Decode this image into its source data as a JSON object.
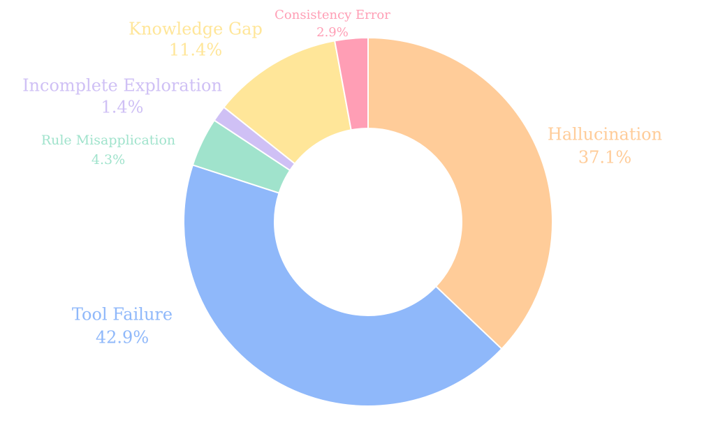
{
  "chart_data": {
    "type": "donut",
    "categories": [
      "Hallucination",
      "Tool Failure",
      "Rule Misapplication",
      "Incomplete Exploration",
      "Knowledge Gap",
      "Consistency Error"
    ],
    "values": [
      37.1,
      42.9,
      4.3,
      1.4,
      11.4,
      2.9
    ],
    "value_labels": [
      "37.1%",
      "42.9%",
      "4.3%",
      "1.4%",
      "11.4%",
      "2.9%"
    ],
    "colors": [
      "#ffcc99",
      "#8fb8fa",
      "#a0e3cc",
      "#cfc0f5",
      "#ffe699",
      "#ff9eb5"
    ]
  }
}
